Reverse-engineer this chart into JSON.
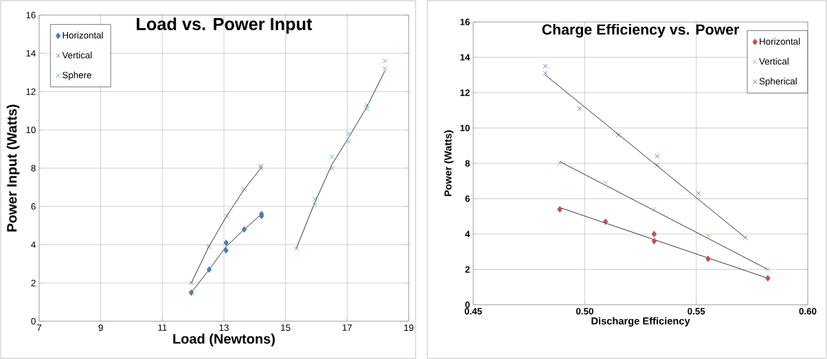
{
  "chart_data": [
    {
      "type": "scatter",
      "title": "Load vs. Power Input",
      "xlabel": "Load (Newtons)",
      "ylabel": "Power Input (Watts)",
      "xlim": [
        7,
        19
      ],
      "xticks": [
        7,
        9,
        11,
        13,
        15,
        17,
        19
      ],
      "ylim": [
        0,
        16
      ],
      "yticks": [
        0,
        2,
        4,
        6,
        8,
        10,
        12,
        14,
        16
      ],
      "grid": true,
      "legend": "top left",
      "series": [
        {
          "name": "Horizontal",
          "color": "#4a7ebb",
          "marker": "diamond",
          "x": [
            11.94,
            12.52,
            13.07,
            13.07,
            13.66,
            14.22,
            14.22
          ],
          "values": [
            1.5,
            2.7,
            4.1,
            3.7,
            4.8,
            5.6,
            5.5
          ]
        },
        {
          "name": "Vertical",
          "color": "#8064a2",
          "marker": "cross",
          "x": [
            11.94,
            12.51,
            13.09,
            13.66,
            14.2,
            14.2
          ],
          "values": [
            2.0,
            3.9,
            5.5,
            6.9,
            8.1,
            8.0
          ]
        },
        {
          "name": "Sphere",
          "color": "#4bacc6",
          "marker": "cross",
          "x": [
            15.35,
            15.95,
            15.95,
            16.51,
            16.51,
            17.05,
            17.05,
            17.64,
            17.64,
            18.23,
            18.23
          ],
          "values": [
            3.8,
            6.1,
            6.4,
            8.0,
            8.6,
            9.8,
            9.4,
            11.1,
            11.3,
            13.2,
            13.6
          ]
        },
        {
          "type": "line",
          "color": "#000000",
          "marker": "none",
          "x": [
            11.94,
            12.52,
            13.07,
            13.66,
            14.22
          ],
          "values": [
            1.5,
            2.7,
            3.9,
            4.8,
            5.6
          ]
        },
        {
          "type": "line",
          "color": "#000000",
          "marker": "none",
          "x": [
            11.94,
            12.51,
            13.09,
            13.66,
            14.2
          ],
          "values": [
            2.0,
            3.9,
            5.5,
            6.9,
            8.0
          ]
        },
        {
          "type": "line",
          "color": "#000000",
          "marker": "none",
          "x": [
            15.35,
            15.95,
            16.51,
            17.05,
            17.64,
            18.23
          ],
          "values": [
            3.8,
            6.2,
            8.2,
            9.6,
            11.2,
            13.1
          ]
        }
      ]
    },
    {
      "type": "scatter",
      "title": "Charge Efficiency vs. Power",
      "xlabel": "Discharge Efficiency",
      "ylabel": "Power (Watts)",
      "xlim": [
        0.45,
        0.6
      ],
      "xticks": [
        {
          "value": 0.45,
          "label": "0.45"
        },
        {
          "value": 0.5,
          "label": "0.50"
        },
        {
          "value": 0.55,
          "label": "0.55"
        },
        {
          "value": 0.6,
          "label": "0.60"
        }
      ],
      "ylim": [
        0,
        16
      ],
      "yticks": [
        0,
        2,
        4,
        6,
        8,
        10,
        12,
        14,
        16
      ],
      "grid": true,
      "legend": "top right",
      "series": [
        {
          "name": "Horizontal",
          "color": "#c0504d",
          "marker": "diamond",
          "x": [
            0.4888,
            0.5093,
            0.5311,
            0.5311,
            0.5553,
            0.5821
          ],
          "values": [
            5.4,
            4.7,
            4.0,
            3.6,
            2.6,
            1.5
          ]
        },
        {
          "name": "Vertical",
          "color": "#9bbb59",
          "marker": "cross",
          "x": [
            0.4888,
            0.5093,
            0.5311,
            0.5555,
            0.5821
          ],
          "values": [
            8.0,
            6.9,
            5.4,
            3.9,
            2.0
          ]
        },
        {
          "name": "Spherical",
          "color": "#8064a2",
          "marker": "cross",
          "x": [
            0.4823,
            0.4823,
            0.4977,
            0.515,
            0.5325,
            0.5325,
            0.551,
            0.572
          ],
          "values": [
            13.5,
            13.1,
            11.1,
            9.6,
            8.4,
            7.9,
            6.3,
            3.8
          ]
        },
        {
          "type": "line",
          "color": "#000000",
          "marker": "none",
          "x": [
            0.4888,
            0.5821
          ],
          "values": [
            5.5,
            1.5
          ]
        },
        {
          "type": "line",
          "color": "#000000",
          "marker": "none",
          "x": [
            0.4888,
            0.5821
          ],
          "values": [
            8.1,
            2.0
          ]
        },
        {
          "type": "line",
          "color": "#000000",
          "marker": "none",
          "x": [
            0.4823,
            0.572
          ],
          "values": [
            13.0,
            3.8
          ]
        }
      ]
    }
  ]
}
